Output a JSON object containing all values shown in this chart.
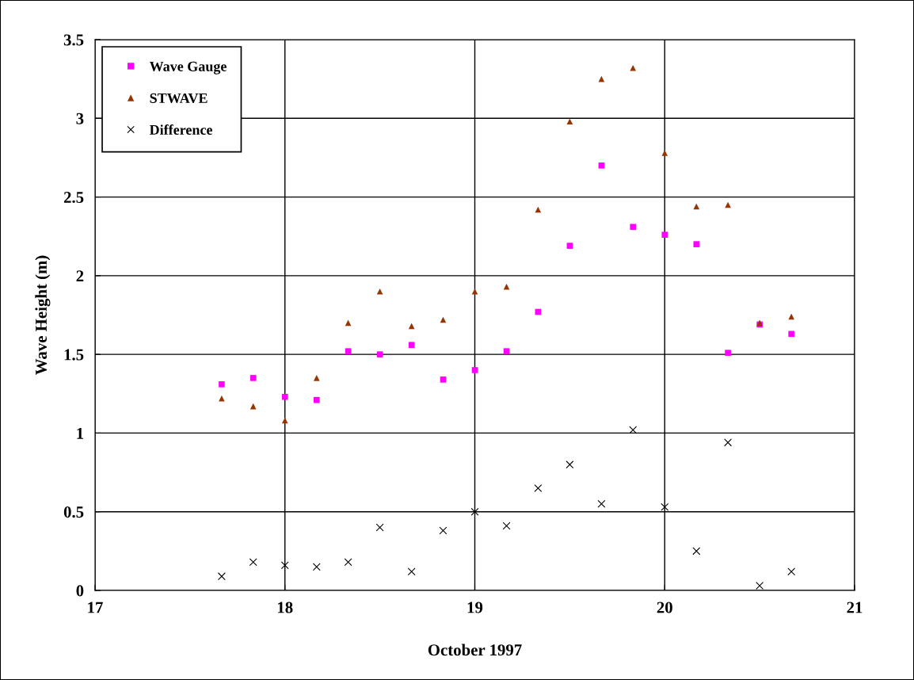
{
  "chart_data": {
    "type": "scatter",
    "xlabel": "October 1997",
    "ylabel": "Wave Height (m)",
    "x": [
      17.667,
      17.833,
      18.0,
      18.167,
      18.333,
      18.5,
      18.667,
      18.833,
      19.0,
      19.167,
      19.333,
      19.5,
      19.667,
      19.833,
      20.0,
      20.167,
      20.333,
      20.5,
      20.667
    ],
    "series": [
      {
        "name": "Wave Gauge",
        "color": "#ff00ff",
        "marker": "square",
        "values": [
          1.31,
          1.35,
          1.23,
          1.21,
          1.52,
          1.5,
          1.56,
          1.34,
          1.4,
          1.52,
          1.77,
          2.19,
          2.7,
          2.31,
          2.26,
          2.2,
          1.51,
          1.69,
          1.63
        ]
      },
      {
        "name": "STWAVE",
        "color": "#993300",
        "marker": "triangle",
        "values": [
          1.22,
          1.17,
          1.08,
          1.35,
          1.7,
          1.9,
          1.68,
          1.72,
          1.9,
          1.93,
          2.42,
          2.98,
          3.25,
          3.32,
          2.78,
          2.44,
          2.45,
          1.7,
          1.74
        ]
      },
      {
        "name": "Difference",
        "color": "#000000",
        "marker": "cross",
        "values": [
          0.09,
          0.18,
          0.16,
          0.15,
          0.18,
          0.4,
          0.12,
          0.38,
          0.5,
          0.41,
          0.65,
          0.8,
          0.55,
          1.02,
          0.53,
          0.25,
          0.94,
          0.03,
          0.12
        ]
      }
    ],
    "xlim": [
      17,
      21
    ],
    "xticks": [
      17,
      18,
      19,
      20,
      21
    ],
    "ylim": [
      0,
      3.5
    ],
    "yticks": [
      0,
      0.5,
      1,
      1.5,
      2,
      2.5,
      3,
      3.5
    ],
    "grid": true,
    "legend": "top left"
  }
}
